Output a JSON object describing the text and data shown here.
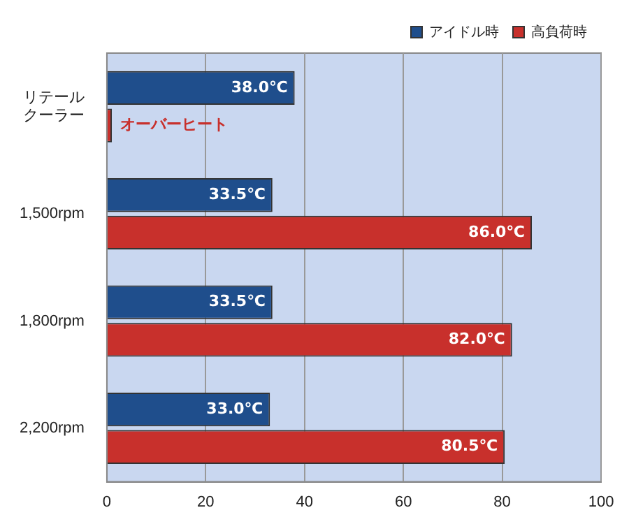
{
  "chart_data": {
    "type": "bar",
    "orientation": "horizontal",
    "categories": [
      "リテールクーラー",
      "1,500rpm",
      "1,800rpm",
      "2,200rpm"
    ],
    "series": [
      {
        "name": "アイドル時",
        "color": "#1f4e8c",
        "values": [
          38.0,
          33.5,
          33.5,
          33.0
        ],
        "value_labels": [
          "38.0℃",
          "33.5℃",
          "33.5℃",
          "33.0℃"
        ]
      },
      {
        "name": "高負荷時",
        "color": "#c8302c",
        "values": [
          1,
          86.0,
          82.0,
          80.5
        ],
        "value_labels": [
          "オーバーヒート",
          "86.0℃",
          "82.0℃",
          "80.5℃"
        ]
      }
    ],
    "xlim": [
      0,
      100
    ],
    "xticks": [
      0,
      20,
      40,
      60,
      80,
      100
    ],
    "grid": "x",
    "legend": "top right"
  }
}
